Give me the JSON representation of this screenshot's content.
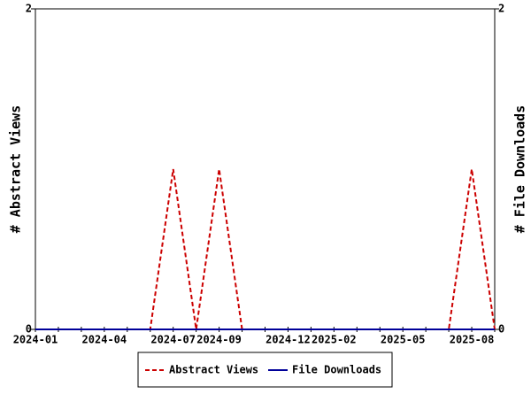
{
  "chart_data": {
    "type": "line",
    "categories": [
      "2024-01",
      null,
      null,
      "2024-04",
      null,
      null,
      "2024-07",
      null,
      "2024-09",
      null,
      null,
      "2024-12",
      null,
      "2025-02",
      null,
      null,
      "2025-05",
      null,
      null,
      "2025-08",
      null
    ],
    "series": [
      {
        "name": "Abstract Views",
        "color": "#cc0000",
        "dashed": true,
        "values": [
          0,
          0,
          0,
          0,
          0,
          0,
          1,
          0,
          1,
          0,
          0,
          0,
          0,
          0,
          0,
          0,
          0,
          0,
          0,
          1,
          0
        ]
      },
      {
        "name": "File Downloads",
        "color": "#000099",
        "axis": "y2",
        "values": [
          0,
          0,
          0,
          0,
          0,
          0,
          0,
          0,
          0,
          0,
          0,
          0,
          0,
          0,
          0,
          0,
          0,
          0,
          0,
          0,
          0
        ]
      }
    ],
    "y_label": "# Abstract Views",
    "y2_label": "# File Downloads",
    "ylim": [
      0,
      2
    ],
    "yticks": [
      0,
      2
    ],
    "y2lim": [
      0,
      2
    ],
    "y2ticks": [
      0,
      2
    ]
  }
}
